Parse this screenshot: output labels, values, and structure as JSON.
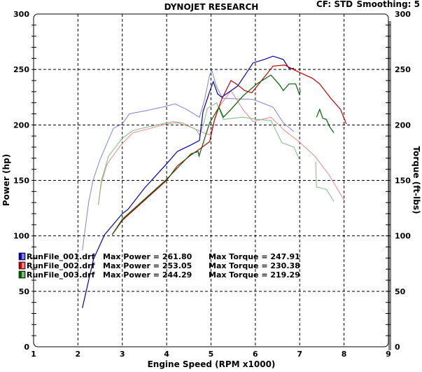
{
  "header": {
    "title": "DYNOJET RESEARCH",
    "cf": "CF: STD",
    "smoothing": "Smoothing: 5"
  },
  "chart_data": {
    "type": "line",
    "title": "DYNOJET RESEARCH",
    "xlabel": "Engine Speed (RPM x1000)",
    "ylabel": "Power (hp)",
    "y2label": "Torque (ft-lbs)",
    "xlim": [
      1,
      9
    ],
    "ylim": [
      0,
      300
    ],
    "y2lim": [
      0,
      300
    ],
    "xticks": [
      "1",
      "2",
      "3",
      "4",
      "5",
      "6",
      "7",
      "8",
      "9"
    ],
    "yticks": [
      "0",
      "50",
      "100",
      "150",
      "200",
      "250",
      "300"
    ],
    "grid": true,
    "legend_position": "lower-left",
    "series": [
      {
        "name": "RunFile_001.drf",
        "power_label": "Max Power = 261.80",
        "torque_label": "Max Torque = 247.91",
        "max_power": 261.8,
        "max_torque": 247.91,
        "color": "#0000b0",
        "torque_color": "#8080dd",
        "power": [
          [
            [
              2.1,
              35
            ],
            [
              2.35,
              79
            ],
            [
              2.6,
              101
            ],
            [
              3.0,
              120
            ],
            [
              3.13,
              124
            ],
            [
              3.5,
              143
            ],
            [
              4.0,
              165
            ],
            [
              4.24,
              176
            ],
            [
              4.55,
              182
            ],
            [
              4.74,
              186
            ],
            [
              4.82,
              212
            ],
            [
              4.97,
              230
            ],
            [
              5.05,
              239
            ],
            [
              5.15,
              228
            ],
            [
              5.24,
              225
            ],
            [
              5.6,
              235
            ],
            [
              5.95,
              256
            ],
            [
              6.2,
              259
            ],
            [
              6.4,
              262
            ],
            [
              6.63,
              259
            ],
            [
              6.76,
              251
            ],
            [
              6.87,
              251
            ]
          ]
        ],
        "torque": [
          [
            [
              2.1,
              87
            ],
            [
              2.24,
              130
            ],
            [
              2.34,
              150
            ],
            [
              2.5,
              169
            ],
            [
              2.8,
              197
            ],
            [
              3.0,
              201
            ],
            [
              3.16,
              210
            ],
            [
              3.55,
              213
            ],
            [
              3.9,
              216
            ],
            [
              4.19,
              219
            ],
            [
              4.45,
              214
            ],
            [
              4.74,
              207
            ],
            [
              4.85,
              222
            ],
            [
              4.97,
              245
            ],
            [
              5.02,
              249
            ],
            [
              5.12,
              235
            ],
            [
              5.26,
              224
            ],
            [
              5.95,
              223
            ],
            [
              6.4,
              216
            ],
            [
              6.63,
              202
            ],
            [
              6.87,
              194
            ]
          ]
        ]
      },
      {
        "name": "RunFile_002.drf",
        "power_label": "Max Power = 253.05",
        "torque_label": "Max Torque = 230.38",
        "max_power": 253.05,
        "max_torque": 230.38,
        "color": "#c00000",
        "torque_color": "#e88888",
        "power": [
          [
            [
              2.77,
              101
            ],
            [
              3.0,
              114
            ],
            [
              3.5,
              132
            ],
            [
              4.0,
              150
            ],
            [
              4.24,
              163
            ],
            [
              4.55,
              173
            ],
            [
              4.77,
              179
            ],
            [
              4.97,
              185
            ],
            [
              5.08,
              205
            ],
            [
              5.24,
              223
            ],
            [
              5.45,
              240
            ],
            [
              5.57,
              237
            ],
            [
              5.76,
              231
            ],
            [
              5.92,
              229
            ],
            [
              6.08,
              237
            ],
            [
              6.4,
              253
            ],
            [
              6.66,
              254
            ],
            [
              6.91,
              249
            ],
            [
              7.29,
              242
            ],
            [
              7.45,
              237
            ],
            [
              7.7,
              224
            ],
            [
              7.92,
              214
            ],
            [
              8.05,
              201
            ]
          ]
        ],
        "torque": [
          [
            [
              2.46,
              128
            ],
            [
              2.53,
              148
            ],
            [
              2.66,
              165
            ],
            [
              2.97,
              182
            ],
            [
              3.24,
              193
            ],
            [
              3.55,
              196
            ],
            [
              4.0,
              201
            ],
            [
              4.24,
              202
            ],
            [
              4.55,
              198
            ],
            [
              4.77,
              194
            ],
            [
              4.97,
              191
            ],
            [
              5.18,
              216
            ],
            [
              5.45,
              231
            ],
            [
              5.72,
              214
            ],
            [
              5.95,
              203
            ],
            [
              6.35,
              207
            ],
            [
              6.66,
              195
            ],
            [
              6.98,
              185
            ],
            [
              7.34,
              172
            ],
            [
              7.66,
              155
            ],
            [
              8.02,
              131
            ]
          ]
        ]
      },
      {
        "name": "RunFile_003.drf",
        "power_label": "Max Power = 244.29",
        "torque_label": "Max Torque = 219.29",
        "max_power": 244.29,
        "max_torque": 219.29,
        "color": "#006000",
        "torque_color": "#80b880",
        "power": [
          [
            [
              2.77,
              101
            ],
            [
              3.0,
              115
            ],
            [
              3.5,
              133
            ],
            [
              4.0,
              151
            ],
            [
              4.55,
              174
            ],
            [
              4.71,
              176
            ],
            [
              4.73,
              172
            ],
            [
              4.97,
              202
            ],
            [
              5.18,
              216
            ],
            [
              5.28,
              207
            ],
            [
              5.45,
              214
            ],
            [
              5.72,
              226
            ],
            [
              6.03,
              237
            ],
            [
              6.35,
              245
            ],
            [
              6.55,
              236
            ],
            [
              6.63,
              231
            ],
            [
              6.76,
              237
            ],
            [
              6.91,
              237
            ],
            [
              6.99,
              228
            ],
            [
              7.02,
              231
            ]
          ],
          [
            [
              7.38,
              207
            ],
            [
              7.45,
              214
            ],
            [
              7.52,
              206
            ],
            [
              7.6,
              205
            ],
            [
              7.68,
              198
            ],
            [
              7.77,
              193
            ]
          ]
        ],
        "torque": [
          [
            [
              2.46,
              128
            ],
            [
              2.53,
              150
            ],
            [
              2.69,
              172
            ],
            [
              3.0,
              188
            ],
            [
              3.24,
              195
            ],
            [
              3.55,
              198
            ],
            [
              4.14,
              203
            ],
            [
              4.35,
              202
            ],
            [
              4.66,
              196
            ],
            [
              4.74,
              191
            ],
            [
              4.82,
              199
            ],
            [
              4.92,
              215
            ],
            [
              5.13,
              220
            ],
            [
              5.28,
              205
            ],
            [
              5.72,
              207
            ],
            [
              6.03,
              205
            ],
            [
              6.35,
              204
            ],
            [
              6.6,
              184
            ],
            [
              6.87,
              180
            ],
            [
              6.99,
              169
            ]
          ],
          [
            [
              7.36,
              167
            ],
            [
              7.38,
              144
            ],
            [
              7.6,
              142
            ],
            [
              7.77,
              131
            ]
          ]
        ]
      }
    ]
  }
}
